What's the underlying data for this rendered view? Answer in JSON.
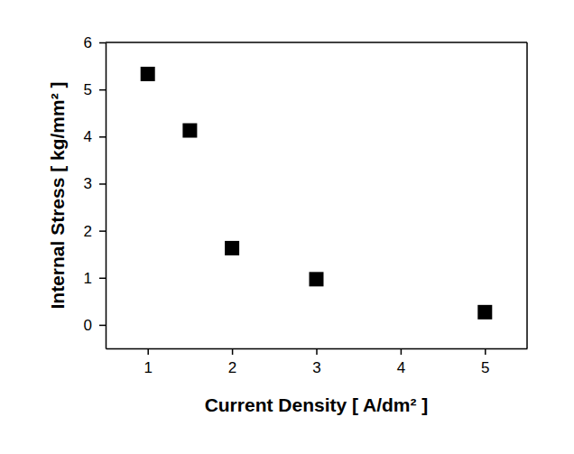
{
  "chart_data": {
    "type": "scatter",
    "x_label": "Current Density [ A/dm² ]",
    "y_label": "Internal Stress [ kg/mm² ]",
    "x": [
      1,
      1.5,
      2,
      3,
      5
    ],
    "values": [
      5.33,
      4.13,
      1.63,
      0.97,
      0.27
    ],
    "color": "#000000",
    "marker": "square",
    "xlim": [
      0.5,
      5.5
    ],
    "xticks": [
      1,
      2,
      3,
      4,
      5
    ],
    "ylim": [
      -0.5,
      6
    ],
    "yticks": [
      0,
      1,
      2,
      3,
      4,
      5,
      6
    ],
    "grid": false
  }
}
